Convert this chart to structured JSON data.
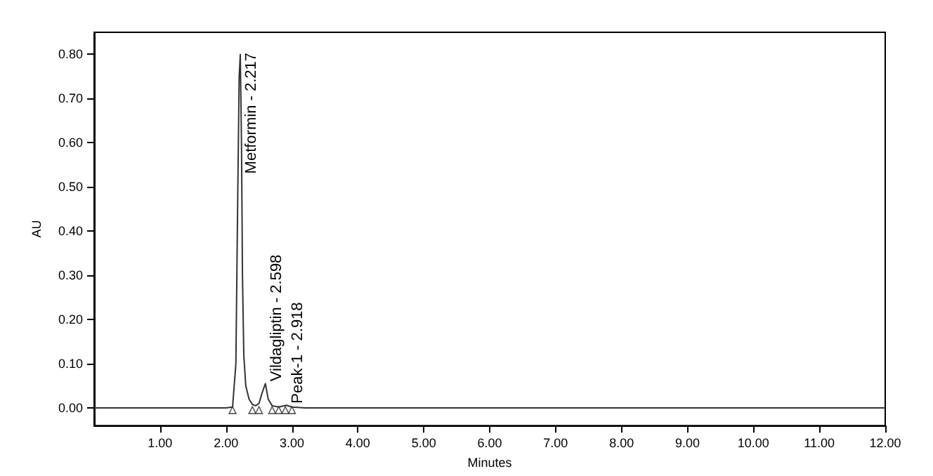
{
  "chart_data": {
    "type": "line",
    "xlabel": "Minutes",
    "ylabel": "AU",
    "xlim": [
      0,
      12
    ],
    "ylim": [
      -0.04,
      0.85
    ],
    "xticks": [
      {
        "value": 1,
        "label": "1.00"
      },
      {
        "value": 2,
        "label": "2.00"
      },
      {
        "value": 3,
        "label": "3.00"
      },
      {
        "value": 4,
        "label": "4.00"
      },
      {
        "value": 5,
        "label": "5.00"
      },
      {
        "value": 6,
        "label": "6.00"
      },
      {
        "value": 7,
        "label": "7.00"
      },
      {
        "value": 8,
        "label": "8.00"
      },
      {
        "value": 9,
        "label": "9.00"
      },
      {
        "value": 10,
        "label": "10.00"
      },
      {
        "value": 11,
        "label": "11.00"
      },
      {
        "value": 12,
        "label": "12.00"
      }
    ],
    "yticks": [
      {
        "value": 0,
        "label": "0.00"
      },
      {
        "value": 0.1,
        "label": "0.10"
      },
      {
        "value": 0.2,
        "label": "0.20"
      },
      {
        "value": 0.3,
        "label": "0.30"
      },
      {
        "value": 0.4,
        "label": "0.40"
      },
      {
        "value": 0.5,
        "label": "0.50"
      },
      {
        "value": 0.6,
        "label": "0.60"
      },
      {
        "value": 0.7,
        "label": "0.70"
      },
      {
        "value": 0.8,
        "label": "0.80"
      }
    ],
    "grid": false,
    "series": [
      {
        "color": "#333333",
        "marker": "none",
        "x": [
          0,
          0.5,
          1,
          1.5,
          2,
          2.1,
          2.15,
          2.18,
          2.2,
          2.217,
          2.235,
          2.25,
          2.27,
          2.3,
          2.35,
          2.4,
          2.45,
          2.5,
          2.55,
          2.598,
          2.64,
          2.7,
          2.8,
          2.918,
          3,
          3.2,
          4,
          6,
          8,
          10,
          12
        ],
        "values": [
          0,
          0,
          0,
          0,
          0,
          0.002,
          0.1,
          0.5,
          0.75,
          0.8,
          0.6,
          0.3,
          0.12,
          0.05,
          0.02,
          0.008,
          0.005,
          0.01,
          0.035,
          0.055,
          0.02,
          0.005,
          0.002,
          0.006,
          0.002,
          0,
          0,
          0,
          0,
          0,
          0
        ]
      },
      {
        "type": "scatter",
        "color": "#333333",
        "marker": "triangle",
        "x": [
          2.1,
          2.4,
          2.5,
          2.7,
          2.8,
          2.9,
          3.0
        ],
        "values": [
          -0.005,
          -0.005,
          -0.005,
          -0.005,
          -0.005,
          -0.005,
          -0.005
        ]
      }
    ],
    "annotations": [
      {
        "text": "Metformin - 2.217",
        "x": 2.217,
        "y": 0.53
      },
      {
        "text": "Vildagliptin - 2.598",
        "x": 2.598,
        "y": 0.06
      },
      {
        "text": "Peak-1 - 2.918",
        "x": 2.918,
        "y": 0.01
      }
    ]
  }
}
